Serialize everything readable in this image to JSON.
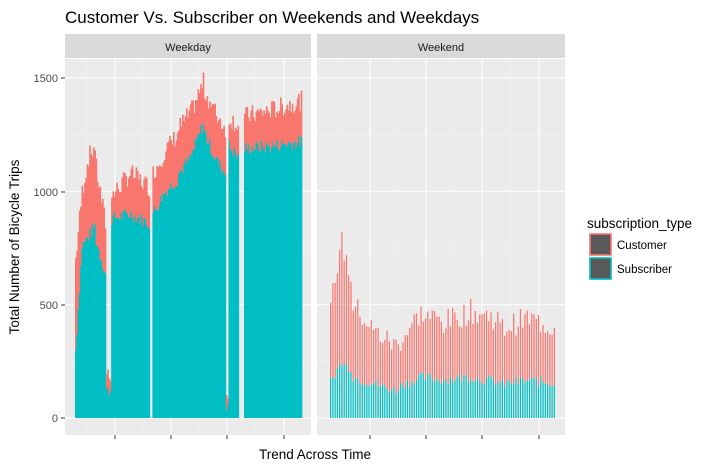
{
  "chart_data": {
    "type": "bar",
    "stacked": true,
    "title": "Customer Vs. Subscriber on Weekends and Weekdays",
    "xlabel": "Trend Across Time",
    "ylabel": "Total Number of Bicycle Trips",
    "ylim": [
      0,
      1550
    ],
    "yticks": [
      0,
      500,
      1000,
      1500
    ],
    "grid": true,
    "legend": {
      "title": "subscription_type",
      "placement": "right",
      "entries": [
        {
          "name": "Customer",
          "color": "#F8766D"
        },
        {
          "name": "Subscriber",
          "color": "#00BFC4"
        }
      ]
    },
    "facets": [
      {
        "label": "Weekday",
        "segments": [
          {
            "n": 16,
            "sub": [
              300,
              760,
              800,
              850
            ],
            "total": [
              700,
              1000,
              1150,
              1200
            ]
          },
          {
            "n": 8,
            "sub": [
              780,
              640
            ],
            "total": [
              1100,
              860
            ]
          },
          {
            "n": 4,
            "sub": [
              120,
              120
            ],
            "total": [
              200,
              200
            ]
          },
          {
            "n": 30,
            "sub": [
              880,
              900,
              860
            ],
            "total": [
              980,
              1080,
              1020
            ]
          },
          {
            "n": 2,
            "sub": [
              0,
              0
            ],
            "total": [
              0,
              0
            ]
          },
          {
            "n": 20,
            "sub": [
              900,
              1000,
              1050
            ],
            "total": [
              1080,
              1180,
              1250
            ]
          },
          {
            "n": 20,
            "sub": [
              1080,
              1150,
              1300
            ],
            "total": [
              1280,
              1350,
              1480
            ]
          },
          {
            "n": 17,
            "sub": [
              1260,
              1150,
              1080
            ],
            "total": [
              1440,
              1350,
              1280
            ]
          },
          {
            "n": 2,
            "sub": [
              60,
              60
            ],
            "total": [
              80,
              80
            ]
          },
          {
            "n": 8,
            "sub": [
              1200,
              1150
            ],
            "total": [
              1330,
              1290
            ]
          },
          {
            "n": 4,
            "sub": [
              0,
              0
            ],
            "total": [
              0,
              0
            ]
          },
          {
            "n": 45,
            "sub": [
              1190,
              1200,
              1220
            ],
            "total": [
              1330,
              1360,
              1400
            ]
          }
        ]
      },
      {
        "label": "Weekend",
        "segments": [
          {
            "n": 10,
            "sub": [
              160,
              240,
              220
            ],
            "total": [
              480,
              790,
              620
            ]
          },
          {
            "n": 20,
            "sub": [
              180,
              150,
              120
            ],
            "total": [
              500,
              380,
              320
            ]
          },
          {
            "n": 20,
            "sub": [
              140,
              180,
              170
            ],
            "total": [
              330,
              460,
              430
            ]
          },
          {
            "n": 25,
            "sub": [
              170,
              180,
              160
            ],
            "total": [
              420,
              470,
              440
            ]
          },
          {
            "n": 25,
            "sub": [
              150,
              165,
              155
            ],
            "total": [
              390,
              440,
              400
            ]
          }
        ]
      }
    ]
  }
}
